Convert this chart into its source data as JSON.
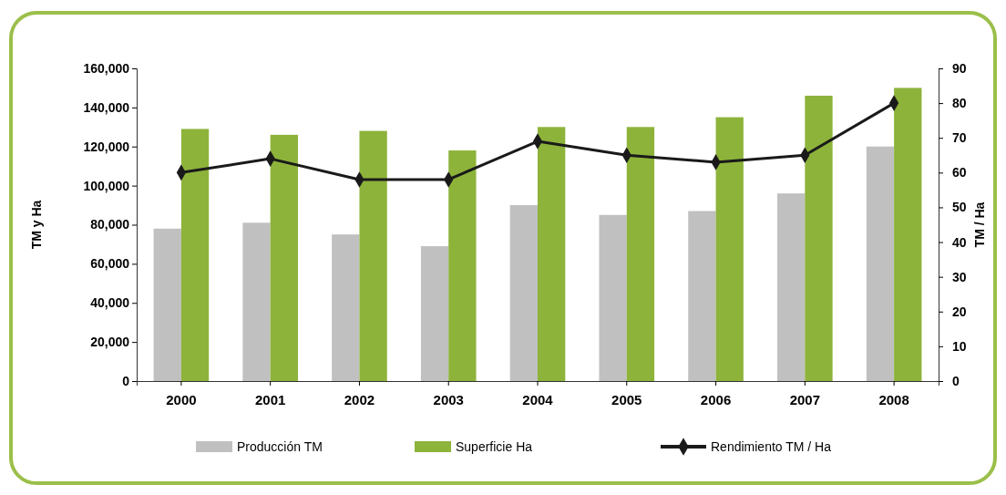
{
  "chart_data": {
    "type": "bar",
    "ylabel": "TM y Ha",
    "y2label": "TM / Ha",
    "categories": [
      "2000",
      "2001",
      "2002",
      "2003",
      "2004",
      "2005",
      "2006",
      "2007",
      "2008"
    ],
    "series": [
      {
        "name": "Producción TM",
        "color": "#c0c0c0",
        "values": [
          78000,
          81000,
          75000,
          69000,
          90000,
          85000,
          87000,
          96000,
          120000
        ]
      },
      {
        "name": "Superficie Ha",
        "color": "#8db33a",
        "values": [
          129000,
          126000,
          128000,
          118000,
          130000,
          130000,
          135000,
          146000,
          150000
        ]
      },
      {
        "name": "Rendimiento TM / Ha",
        "type": "line",
        "axis": "y2",
        "color": "#1a1a1a",
        "marker": "diamond",
        "values": [
          60,
          64,
          58,
          58,
          69,
          65,
          63,
          65,
          80
        ]
      }
    ],
    "ylim": [
      0,
      160000
    ],
    "yticks": [
      {
        "value": 0,
        "label": "0"
      },
      {
        "value": 20000,
        "label": "20,000"
      },
      {
        "value": 40000,
        "label": "40,000"
      },
      {
        "value": 60000,
        "label": "60,000"
      },
      {
        "value": 80000,
        "label": "80,000"
      },
      {
        "value": 100000,
        "label": "100,000"
      },
      {
        "value": 120000,
        "label": "120,000"
      },
      {
        "value": 140000,
        "label": "140,000"
      },
      {
        "value": 160000,
        "label": "160,000"
      }
    ],
    "y2lim": [
      0,
      90
    ],
    "y2ticks": [
      0,
      10,
      20,
      30,
      40,
      50,
      60,
      70,
      80,
      90
    ],
    "grid": false,
    "legend": "bottom"
  }
}
